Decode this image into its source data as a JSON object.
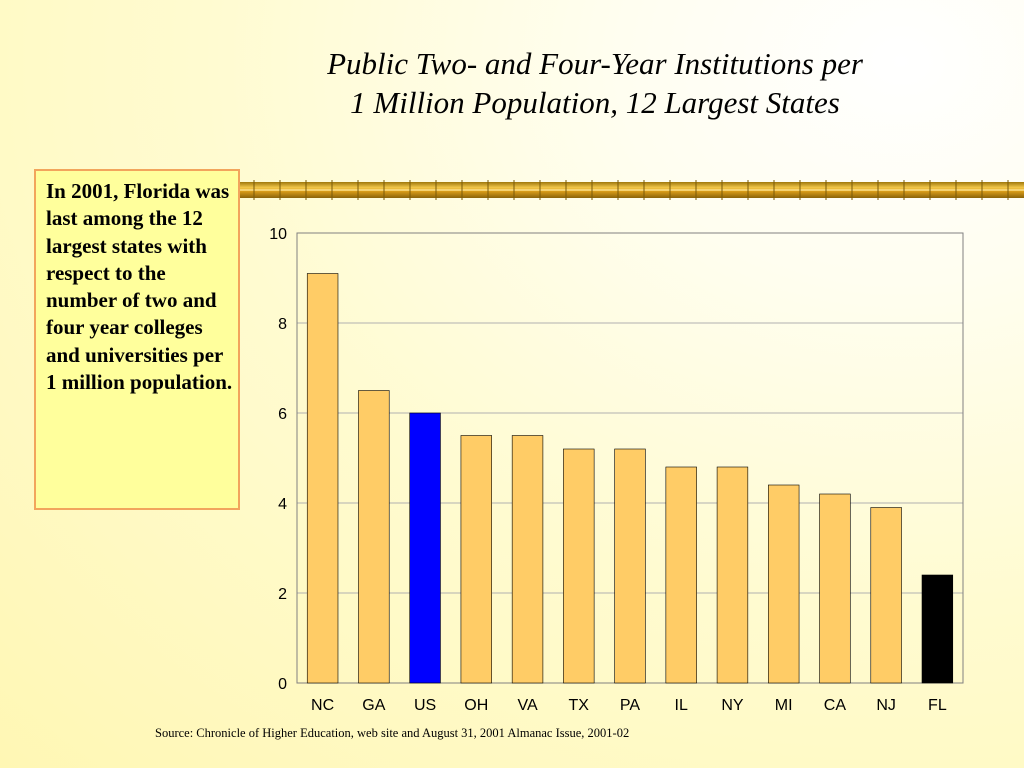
{
  "slide": {
    "title_line1": "Public Two- and Four-Year Institutions per",
    "title_line2": "1 Million Population, 12 Largest States",
    "callout": "In 2001, Florida was last among the 12 largest states with respect to the number of two and four year colleges and universities per 1 million population.",
    "source": "Source: Chronicle of Higher Education, web site and August 31, 2001 Almanac Issue, 2001-02"
  },
  "colors": {
    "bar_default": "#ffcc66",
    "bar_us": "#0000ff",
    "bar_fl": "#000000",
    "callout_fill": "#ffff9c",
    "callout_border": "#f2a55c",
    "divider": "#d6a21e"
  },
  "chart_data": {
    "type": "bar",
    "categories": [
      "NC",
      "GA",
      "US",
      "OH",
      "VA",
      "TX",
      "PA",
      "IL",
      "NY",
      "MI",
      "CA",
      "NJ",
      "FL"
    ],
    "values": [
      9.1,
      6.5,
      6.0,
      5.5,
      5.5,
      5.2,
      5.2,
      4.8,
      4.8,
      4.4,
      4.2,
      3.9,
      2.4
    ],
    "highlight": {
      "US": "#0000ff",
      "FL": "#000000"
    },
    "ylim": [
      0,
      10
    ],
    "yticks": [
      "0",
      "2",
      "4",
      "6",
      "8",
      "10"
    ],
    "grid": true,
    "legend": "none"
  }
}
